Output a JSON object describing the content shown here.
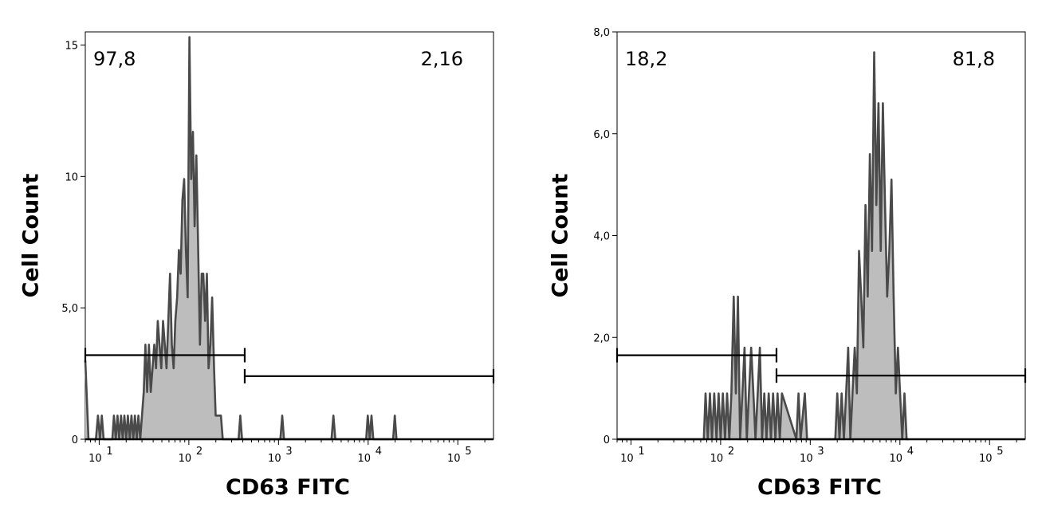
{
  "chart_data": [
    {
      "type": "area",
      "xlabel": "CD63 FITC",
      "ylabel": "Cell Count",
      "x_scale": "log",
      "xlim": [
        7,
        250000
      ],
      "ylim": [
        0,
        15.5
      ],
      "x_ticks": [
        {
          "value": 10,
          "base": "10",
          "exp": "1"
        },
        {
          "value": 100,
          "base": "10",
          "exp": "2"
        },
        {
          "value": 1000,
          "base": "10",
          "exp": "3"
        },
        {
          "value": 10000,
          "base": "10",
          "exp": "4"
        },
        {
          "value": 100000,
          "base": "10",
          "exp": "5"
        }
      ],
      "y_ticks": [
        {
          "value": 0,
          "label": "0"
        },
        {
          "value": 5,
          "label": "5,0"
        },
        {
          "value": 10,
          "label": "10"
        },
        {
          "value": 15,
          "label": "15"
        }
      ],
      "gates": [
        {
          "label": "97,8",
          "x_start": 7,
          "x_end": 420,
          "y": 3.2,
          "label_pos": "top-left"
        },
        {
          "label": "2,16",
          "x_start": 420,
          "x_end": 250000,
          "y": 2.4,
          "label_pos": "top-right"
        }
      ],
      "series": [
        {
          "x": [
            7,
            7.6,
            9.2,
            9.7,
            10.2,
            10.7,
            11.2,
            14,
            14.6,
            15.3,
            16,
            16.7,
            17.5,
            18.3,
            19.1,
            20,
            20.9,
            21.9,
            22.9,
            24,
            25,
            26.2,
            27.4,
            28.7,
            30,
            31.4,
            32.8,
            34.3,
            35.9,
            37.6,
            39.3,
            41.1,
            43,
            45,
            47.1,
            49.3,
            51.5,
            53.9,
            56.4,
            59,
            61.7,
            64.6,
            67.6,
            70.7,
            74,
            77.4,
            81,
            84.7,
            88.6,
            92.7,
            97,
            101.5,
            106.2,
            111,
            116,
            121.4,
            127,
            133,
            139,
            145,
            152,
            159,
            166,
            174,
            182,
            191,
            199,
            209,
            218,
            228,
            239,
            250,
            262,
            274,
            286,
            299,
            313,
            328,
            343,
            359,
            375,
            392,
            410,
            430,
            1000,
            1050,
            1100,
            1150,
            3900,
            4100,
            4300,
            9500,
            9900,
            10400,
            10900,
            11400,
            19000,
            19800,
            20700
          ],
          "values": [
            3,
            0,
            0,
            0.9,
            0,
            0.9,
            0,
            0,
            0.9,
            0,
            0.9,
            0,
            0.9,
            0,
            0.9,
            0,
            0.9,
            0,
            0.9,
            0,
            0.9,
            0,
            0.9,
            0,
            0.9,
            1.8,
            3.6,
            1.8,
            3.6,
            1.8,
            2.7,
            3.6,
            2.7,
            4.5,
            3.6,
            2.7,
            4.5,
            3.6,
            2.7,
            4.5,
            6.3,
            3.6,
            2.7,
            4.5,
            5.4,
            7.2,
            6.3,
            9.1,
            9.9,
            7.2,
            5.4,
            15.3,
            9.9,
            11.7,
            8.1,
            10.8,
            7.2,
            3.6,
            6.3,
            6.3,
            4.5,
            6.3,
            2.7,
            3.6,
            5.4,
            2.7,
            0.9,
            0.9,
            0.9,
            0.9,
            0,
            0,
            0,
            0,
            0,
            0,
            0,
            0,
            0,
            0,
            0.9,
            0,
            0,
            0,
            0,
            0,
            0.9,
            0,
            0,
            0.9,
            0,
            0,
            0.9,
            0,
            0.9,
            0,
            0,
            0.9,
            0
          ]
        }
      ]
    },
    {
      "type": "area",
      "xlabel": "CD63 FITC",
      "ylabel": "Cell Count",
      "x_scale": "log",
      "xlim": [
        7,
        250000
      ],
      "ylim": [
        0,
        8.0
      ],
      "x_ticks": [
        {
          "value": 10,
          "base": "10",
          "exp": "1"
        },
        {
          "value": 100,
          "base": "10",
          "exp": "2"
        },
        {
          "value": 1000,
          "base": "10",
          "exp": "3"
        },
        {
          "value": 10000,
          "base": "10",
          "exp": "4"
        },
        {
          "value": 100000,
          "base": "10",
          "exp": "5"
        }
      ],
      "y_ticks": [
        {
          "value": 0,
          "label": "0"
        },
        {
          "value": 2,
          "label": "2,0"
        },
        {
          "value": 4,
          "label": "4,0"
        },
        {
          "value": 6,
          "label": "6,0"
        },
        {
          "value": 8,
          "label": "8,0"
        }
      ],
      "gates": [
        {
          "label": "18,2",
          "x_start": 7,
          "x_end": 420,
          "y": 1.65,
          "label_pos": "top-left"
        },
        {
          "label": "81,8",
          "x_start": 420,
          "x_end": 250000,
          "y": 1.25,
          "label_pos": "top-right"
        }
      ],
      "series": [
        {
          "x": [
            7,
            65,
            68,
            72,
            76,
            80,
            85,
            90,
            95,
            100,
            106,
            112,
            118,
            125,
            132,
            140,
            148,
            156,
            165,
            175,
            185,
            196,
            207,
            219,
            232,
            245,
            259,
            274,
            290,
            307,
            325,
            344,
            364,
            385,
            408,
            432,
            457,
            483,
            700,
            740,
            780,
            870,
            920,
            1900,
            2000,
            2120,
            2240,
            2370,
            2510,
            2650,
            2800,
            2960,
            3130,
            3310,
            3500,
            3700,
            3910,
            4130,
            4370,
            4620,
            4880,
            5160,
            5460,
            5770,
            6100,
            6450,
            6820,
            7210,
            7620,
            8050,
            8510,
            9000,
            9510,
            10050,
            10620,
            11230,
            11870,
            12500
          ],
          "values": [
            0,
            0,
            0.9,
            0,
            0.9,
            0,
            0.9,
            0,
            0.9,
            0,
            0.9,
            0,
            0.9,
            0,
            0.9,
            2.8,
            0.9,
            2.8,
            0,
            0.9,
            1.8,
            0,
            0.9,
            1.8,
            0.9,
            0,
            0.9,
            1.8,
            0,
            0.9,
            0,
            0.9,
            0,
            0.9,
            0,
            0.9,
            0,
            0.9,
            0,
            0.9,
            0,
            0.9,
            0,
            0,
            0.9,
            0,
            0.9,
            0,
            0.9,
            1.8,
            0,
            0.9,
            1.8,
            0.9,
            3.7,
            2.8,
            1.8,
            4.6,
            2.8,
            5.6,
            3.7,
            7.6,
            4.6,
            6.6,
            3.7,
            6.6,
            4.6,
            2.8,
            3.7,
            5.1,
            2.8,
            0.9,
            1.8,
            0.9,
            0,
            0.9,
            0,
            0
          ]
        }
      ]
    }
  ]
}
